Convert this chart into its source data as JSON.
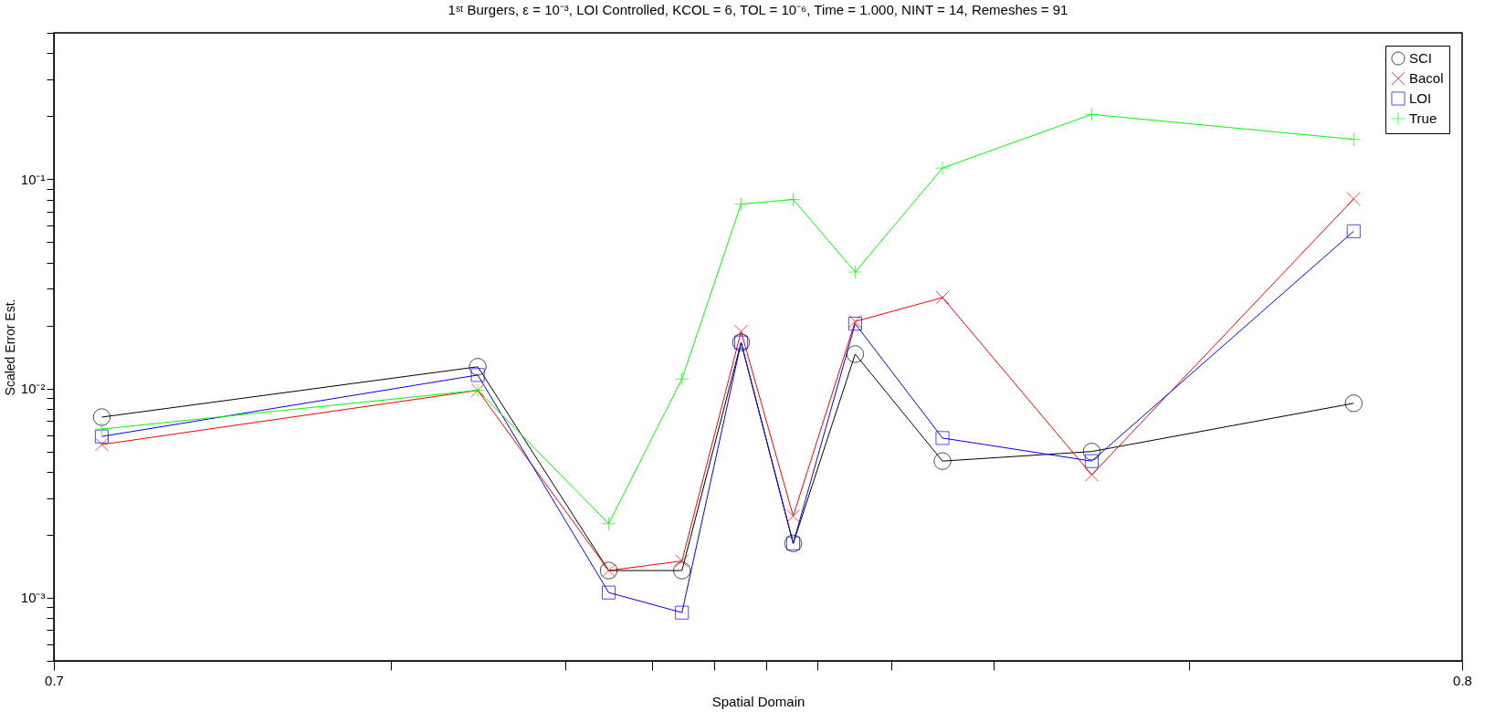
{
  "chart_data": {
    "type": "line",
    "title": "1ˢᵗ Burgers, ε = 10⁻³, LOI Controlled, KCOL = 6, TOL = 10⁻⁶, Time = 1.000, NINT = 14, Remeshes = 91",
    "xlabel": "Spatial Domain",
    "ylabel": "Scaled Error Est.",
    "x": [
      0.7034,
      0.7301,
      0.7394,
      0.7446,
      0.7488,
      0.7525,
      0.7569,
      0.7631,
      0.7737,
      0.7923
    ],
    "series": [
      {
        "name": "SCI",
        "color": "#000000",
        "marker": "circle",
        "values": [
          0.0073,
          0.0127,
          0.00135,
          0.00135,
          0.0166,
          0.00182,
          0.0146,
          0.0045,
          0.005,
          0.0085
        ]
      },
      {
        "name": "Bacol",
        "color": "#ff0000",
        "marker": "cross",
        "values": [
          0.0054,
          0.0098,
          0.00135,
          0.0015,
          0.0187,
          0.00246,
          0.0209,
          0.0272,
          0.00387,
          0.0805
        ]
      },
      {
        "name": "LOI",
        "color": "#0000ff",
        "marker": "square",
        "values": [
          0.0059,
          0.0116,
          0.00106,
          0.00085,
          0.0166,
          0.00182,
          0.0204,
          0.0058,
          0.0045,
          0.0564
        ]
      },
      {
        "name": "True",
        "color": "#00ff00",
        "marker": "plus",
        "values": [
          0.0064,
          0.0098,
          0.00226,
          0.0111,
          0.076,
          0.08,
          0.036,
          0.113,
          0.204,
          0.155
        ]
      }
    ],
    "log": "y",
    "xlim": [
      0.7,
      0.8
    ],
    "xticks": [
      0.7,
      {
        "value": 0.7239,
        "label": null
      },
      {
        "value": 0.7363,
        "label": null
      },
      {
        "value": 0.7425,
        "label": null
      },
      {
        "value": 0.7469,
        "label": null
      },
      {
        "value": 0.7506,
        "label": null
      },
      {
        "value": 0.7542,
        "label": null
      },
      {
        "value": 0.7595,
        "label": null
      },
      {
        "value": 0.7667,
        "label": null
      },
      {
        "value": 0.7806,
        "label": null
      },
      0.8
    ],
    "ylim": [
      0.0005,
      0.5
    ],
    "yticks": [
      {
        "value": 0.0005,
        "label": null
      },
      {
        "value": 0.0006,
        "label": null
      },
      {
        "value": 0.0007,
        "label": null
      },
      {
        "value": 0.0008,
        "label": null
      },
      {
        "value": 0.0009,
        "label": null
      },
      {
        "value": 0.001,
        "label": "10⁻³"
      },
      {
        "value": 0.002,
        "label": null
      },
      {
        "value": 0.003,
        "label": null
      },
      {
        "value": 0.004,
        "label": null
      },
      {
        "value": 0.005,
        "label": null
      },
      {
        "value": 0.006,
        "label": null
      },
      {
        "value": 0.007,
        "label": null
      },
      {
        "value": 0.008,
        "label": null
      },
      {
        "value": 0.009,
        "label": null
      },
      {
        "value": 0.01,
        "label": "10⁻²"
      },
      {
        "value": 0.02,
        "label": null
      },
      {
        "value": 0.03,
        "label": null
      },
      {
        "value": 0.04,
        "label": null
      },
      {
        "value": 0.05,
        "label": null
      },
      {
        "value": 0.06,
        "label": null
      },
      {
        "value": 0.07,
        "label": null
      },
      {
        "value": 0.08,
        "label": null
      },
      {
        "value": 0.09,
        "label": null
      },
      {
        "value": 0.1,
        "label": "10⁻¹"
      },
      {
        "value": 0.2,
        "label": null
      },
      {
        "value": 0.3,
        "label": null
      },
      {
        "value": 0.4,
        "label": null
      },
      {
        "value": 0.5,
        "label": null
      }
    ],
    "grid": false,
    "legend": "top right"
  }
}
